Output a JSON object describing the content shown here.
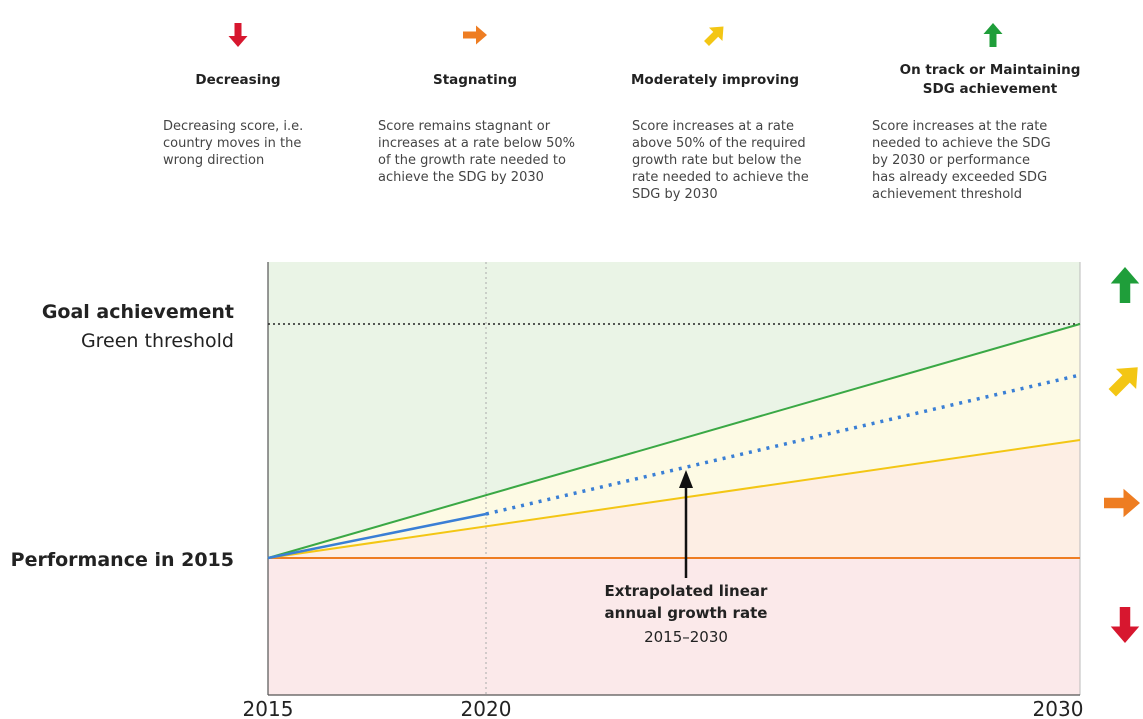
{
  "legend": [
    {
      "title": [
        "Decreasing"
      ],
      "description": [
        "Decreasing score, i.e.",
        "country moves in the",
        "wrong direction"
      ]
    },
    {
      "title": [
        "Stagnating"
      ],
      "description": [
        "Score remains stagnant or",
        "increases at a rate below 50%",
        "of the growth rate needed to",
        "achieve the SDG by 2030"
      ]
    },
    {
      "title": [
        "Moderately improving"
      ],
      "description": [
        "Score increases at a rate",
        "above 50% of the required",
        "growth rate but below the",
        "rate needed to achieve the",
        "SDG by 2030"
      ]
    },
    {
      "title": [
        "On track or Maintaining",
        "SDG achievement"
      ],
      "description": [
        "Score increases at the rate",
        "needed to achieve the SDG",
        "by 2030 or performance",
        "has already exceeded SDG",
        "achievement threshold"
      ]
    }
  ],
  "chart": {
    "goal_label": "Goal achievement",
    "threshold_label": "Green threshold",
    "baseline_label": "Performance in 2015",
    "annotation": [
      "Extrapolated linear",
      "annual growth rate"
    ],
    "annotation_period": "2015–2030",
    "x_ticks": [
      "2015",
      "2020",
      "2030"
    ]
  }
}
